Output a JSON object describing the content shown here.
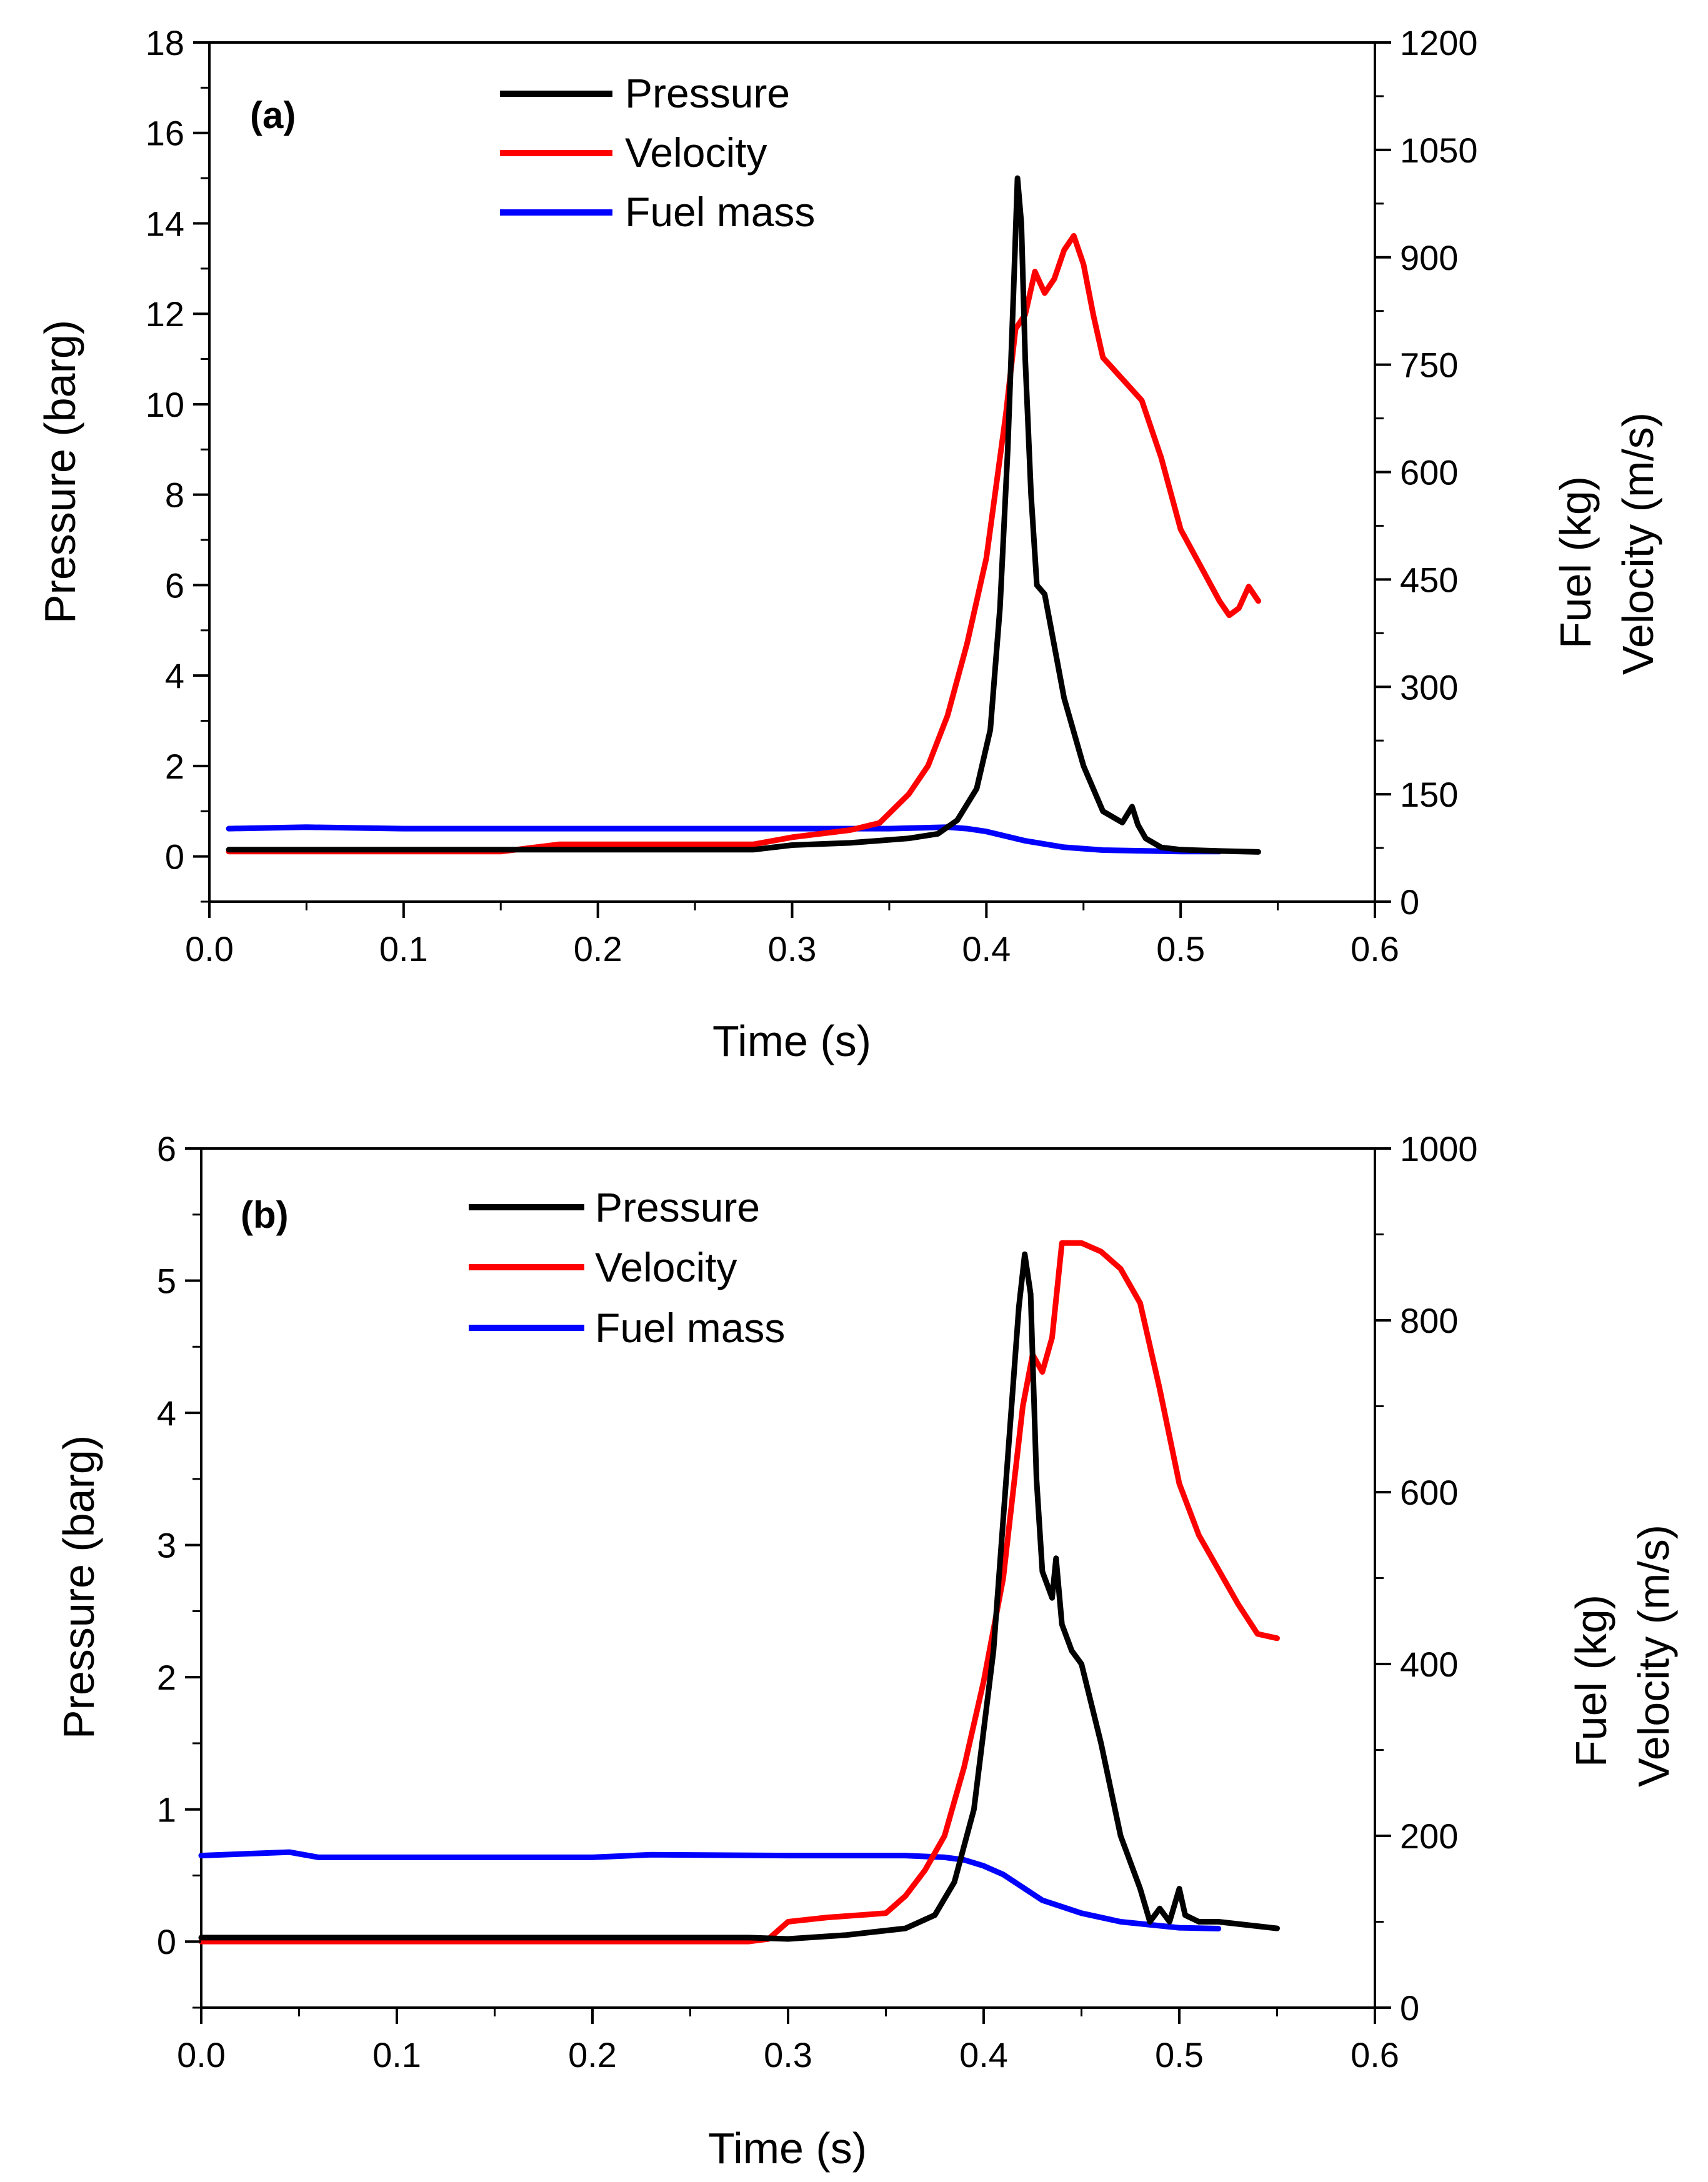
{
  "chart_data": [
    {
      "type": "line",
      "panel_label": "(a)",
      "xlabel": "Time (s)",
      "ylabel_left": "Pressure (barg)",
      "ylabel_right_lines": [
        "Fuel (kg)",
        "Velocity (m/s)"
      ],
      "xlim": [
        0.0,
        0.6
      ],
      "ylim_left": [
        -1,
        18
      ],
      "ylim_right": [
        0,
        1200
      ],
      "x_ticks": [
        "0.0",
        "0.1",
        "0.2",
        "0.3",
        "0.4",
        "0.5",
        "0.6"
      ],
      "y_left_ticks": [
        "0",
        "2",
        "4",
        "6",
        "8",
        "10",
        "12",
        "14",
        "16",
        "18"
      ],
      "y_right_ticks": [
        "0",
        "150",
        "300",
        "450",
        "600",
        "750",
        "900",
        "1050",
        "1200"
      ],
      "legend": {
        "position": "top-left",
        "entries": [
          "Pressure",
          "Velocity",
          "Fuel mass"
        ]
      },
      "series": [
        {
          "name": "Pressure",
          "axis": "left",
          "color": "#000000",
          "x": [
            0.01,
            0.1,
            0.2,
            0.28,
            0.3,
            0.33,
            0.36,
            0.375,
            0.385,
            0.395,
            0.402,
            0.407,
            0.411,
            0.414,
            0.416,
            0.418,
            0.42,
            0.423,
            0.426,
            0.43,
            0.44,
            0.45,
            0.46,
            0.47,
            0.475,
            0.478,
            0.482,
            0.49,
            0.5,
            0.52,
            0.54
          ],
          "values": [
            0.15,
            0.15,
            0.15,
            0.15,
            0.25,
            0.3,
            0.4,
            0.5,
            0.8,
            1.5,
            2.8,
            5.5,
            9,
            12.5,
            15,
            14,
            11,
            8,
            6,
            5.8,
            3.5,
            2.0,
            1.0,
            0.75,
            1.1,
            0.7,
            0.4,
            0.2,
            0.15,
            0.12,
            0.1
          ]
        },
        {
          "name": "Velocity",
          "axis": "right",
          "color": "#ff0000",
          "x": [
            0.01,
            0.05,
            0.1,
            0.15,
            0.18,
            0.2,
            0.25,
            0.28,
            0.3,
            0.33,
            0.345,
            0.36,
            0.37,
            0.38,
            0.39,
            0.4,
            0.41,
            0.415,
            0.42,
            0.425,
            0.43,
            0.435,
            0.44,
            0.445,
            0.45,
            0.455,
            0.46,
            0.47,
            0.48,
            0.49,
            0.5,
            0.51,
            0.52,
            0.525,
            0.53,
            0.535,
            0.54
          ],
          "values": [
            70,
            70,
            70,
            70,
            80,
            80,
            80,
            80,
            90,
            100,
            110,
            150,
            190,
            260,
            360,
            480,
            680,
            800,
            820,
            880,
            850,
            870,
            910,
            930,
            890,
            820,
            760,
            730,
            700,
            620,
            520,
            470,
            420,
            400,
            410,
            440,
            420
          ]
        },
        {
          "name": "Fuel mass",
          "axis": "right",
          "color": "#0000ff",
          "x": [
            0.01,
            0.05,
            0.1,
            0.2,
            0.3,
            0.35,
            0.38,
            0.39,
            0.4,
            0.42,
            0.44,
            0.46,
            0.5,
            0.52
          ],
          "values": [
            102,
            104,
            102,
            102,
            102,
            102,
            104,
            102,
            98,
            85,
            76,
            72,
            70,
            70
          ]
        }
      ]
    },
    {
      "type": "line",
      "panel_label": "(b)",
      "xlabel": "Time (s)",
      "ylabel_left": "Pressure (barg)",
      "ylabel_right_lines": [
        "Fuel (kg)",
        "Velocity (m/s)"
      ],
      "xlim": [
        0.0,
        0.6
      ],
      "ylim_left": [
        -0.5,
        6
      ],
      "ylim_right": [
        0,
        1000
      ],
      "x_ticks": [
        "0.0",
        "0.1",
        "0.2",
        "0.3",
        "0.4",
        "0.5",
        "0.6"
      ],
      "y_left_ticks": [
        "0",
        "1",
        "2",
        "3",
        "4",
        "5",
        "6"
      ],
      "y_right_ticks": [
        "0",
        "200",
        "400",
        "600",
        "800",
        "1000"
      ],
      "legend": {
        "position": "top-left",
        "entries": [
          "Pressure",
          "Velocity",
          "Fuel mass"
        ]
      },
      "series": [
        {
          "name": "Pressure",
          "axis": "left",
          "color": "#000000",
          "x": [
            0.0,
            0.1,
            0.2,
            0.28,
            0.3,
            0.33,
            0.36,
            0.375,
            0.385,
            0.395,
            0.405,
            0.412,
            0.418,
            0.421,
            0.424,
            0.427,
            0.43,
            0.435,
            0.437,
            0.44,
            0.445,
            0.45,
            0.46,
            0.47,
            0.48,
            0.485,
            0.49,
            0.495,
            0.5,
            0.503,
            0.51,
            0.52,
            0.55
          ],
          "values": [
            0.03,
            0.03,
            0.03,
            0.03,
            0.02,
            0.05,
            0.1,
            0.2,
            0.45,
            1.0,
            2.2,
            3.6,
            4.8,
            5.2,
            4.9,
            3.5,
            2.8,
            2.6,
            2.9,
            2.4,
            2.2,
            2.1,
            1.5,
            0.8,
            0.4,
            0.15,
            0.25,
            0.15,
            0.4,
            0.2,
            0.15,
            0.15,
            0.1
          ]
        },
        {
          "name": "Velocity",
          "axis": "right",
          "color": "#ff0000",
          "x": [
            0.0,
            0.1,
            0.2,
            0.28,
            0.29,
            0.3,
            0.32,
            0.35,
            0.36,
            0.37,
            0.38,
            0.39,
            0.4,
            0.41,
            0.42,
            0.425,
            0.43,
            0.435,
            0.44,
            0.45,
            0.46,
            0.47,
            0.48,
            0.49,
            0.5,
            0.51,
            0.52,
            0.53,
            0.54,
            0.55
          ],
          "values": [
            77,
            77,
            77,
            77,
            80,
            100,
            105,
            110,
            130,
            160,
            200,
            280,
            380,
            500,
            700,
            760,
            740,
            780,
            890,
            890,
            880,
            860,
            820,
            720,
            610,
            550,
            510,
            470,
            435,
            430
          ]
        },
        {
          "name": "Fuel mass",
          "axis": "right",
          "color": "#0000ff",
          "x": [
            0.0,
            0.045,
            0.06,
            0.1,
            0.2,
            0.23,
            0.3,
            0.36,
            0.38,
            0.39,
            0.4,
            0.41,
            0.42,
            0.43,
            0.45,
            0.47,
            0.5,
            0.52
          ],
          "values": [
            177,
            181,
            175,
            175,
            175,
            178,
            177,
            177,
            175,
            172,
            165,
            155,
            140,
            125,
            110,
            100,
            93,
            92
          ]
        }
      ]
    }
  ]
}
